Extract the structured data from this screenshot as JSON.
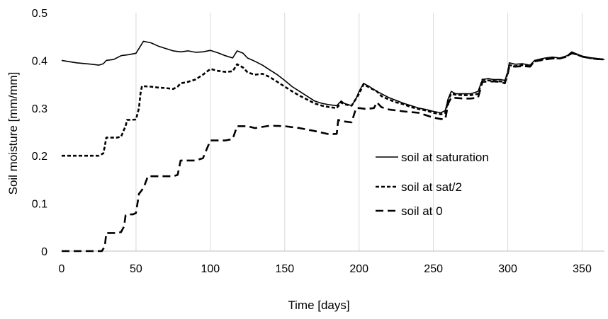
{
  "chart_data": {
    "type": "line",
    "title": "",
    "xlabel": "Time [days]",
    "ylabel": "Soil moisture [mm/mm]",
    "xlim": [
      0,
      365
    ],
    "ylim": [
      0,
      0.5
    ],
    "xticks": [
      0,
      50,
      100,
      150,
      200,
      250,
      300,
      350
    ],
    "yticks": [
      0,
      0.1,
      0.2,
      0.3,
      0.4,
      0.5
    ],
    "xtick_labels": [
      "0",
      "50",
      "100",
      "150",
      "200",
      "250",
      "300",
      "350"
    ],
    "ytick_labels": [
      "0",
      "0.1",
      "0.2",
      "0.3",
      "0.4",
      "0.5"
    ],
    "grid": "vertical",
    "legend_position": "right",
    "series": [
      {
        "name": "soil at saturation",
        "color": "#000000",
        "dash": "solid",
        "points": [
          [
            0,
            0.4
          ],
          [
            10,
            0.395
          ],
          [
            20,
            0.392
          ],
          [
            25,
            0.39
          ],
          [
            28,
            0.393
          ],
          [
            30,
            0.4
          ],
          [
            35,
            0.402
          ],
          [
            40,
            0.41
          ],
          [
            45,
            0.412
          ],
          [
            50,
            0.415
          ],
          [
            52,
            0.425
          ],
          [
            55,
            0.44
          ],
          [
            60,
            0.437
          ],
          [
            65,
            0.43
          ],
          [
            70,
            0.425
          ],
          [
            75,
            0.42
          ],
          [
            80,
            0.418
          ],
          [
            85,
            0.42
          ],
          [
            90,
            0.417
          ],
          [
            95,
            0.418
          ],
          [
            100,
            0.421
          ],
          [
            105,
            0.416
          ],
          [
            110,
            0.41
          ],
          [
            115,
            0.405
          ],
          [
            118,
            0.42
          ],
          [
            122,
            0.415
          ],
          [
            125,
            0.405
          ],
          [
            130,
            0.398
          ],
          [
            135,
            0.39
          ],
          [
            140,
            0.38
          ],
          [
            145,
            0.37
          ],
          [
            150,
            0.358
          ],
          [
            155,
            0.345
          ],
          [
            160,
            0.335
          ],
          [
            165,
            0.325
          ],
          [
            170,
            0.315
          ],
          [
            175,
            0.31
          ],
          [
            180,
            0.307
          ],
          [
            185,
            0.305
          ],
          [
            188,
            0.315
          ],
          [
            190,
            0.31
          ],
          [
            195,
            0.305
          ],
          [
            198,
            0.32
          ],
          [
            200,
            0.335
          ],
          [
            203,
            0.352
          ],
          [
            207,
            0.345
          ],
          [
            212,
            0.335
          ],
          [
            215,
            0.33
          ],
          [
            220,
            0.322
          ],
          [
            225,
            0.316
          ],
          [
            230,
            0.31
          ],
          [
            235,
            0.305
          ],
          [
            240,
            0.3
          ],
          [
            245,
            0.297
          ],
          [
            250,
            0.293
          ],
          [
            255,
            0.29
          ],
          [
            258,
            0.295
          ],
          [
            260,
            0.32
          ],
          [
            262,
            0.335
          ],
          [
            265,
            0.33
          ],
          [
            270,
            0.33
          ],
          [
            275,
            0.33
          ],
          [
            280,
            0.335
          ],
          [
            283,
            0.36
          ],
          [
            287,
            0.362
          ],
          [
            290,
            0.36
          ],
          [
            295,
            0.36
          ],
          [
            298,
            0.358
          ],
          [
            300,
            0.375
          ],
          [
            301,
            0.395
          ],
          [
            305,
            0.392
          ],
          [
            310,
            0.393
          ],
          [
            315,
            0.39
          ],
          [
            318,
            0.4
          ],
          [
            322,
            0.403
          ],
          [
            325,
            0.405
          ],
          [
            330,
            0.407
          ],
          [
            335,
            0.405
          ],
          [
            340,
            0.41
          ],
          [
            343,
            0.418
          ],
          [
            346,
            0.414
          ],
          [
            350,
            0.409
          ],
          [
            355,
            0.406
          ],
          [
            360,
            0.404
          ],
          [
            365,
            0.402
          ]
        ]
      },
      {
        "name": "soil at sat/2",
        "color": "#000000",
        "dash": "short",
        "points": [
          [
            0,
            0.2
          ],
          [
            25,
            0.2
          ],
          [
            28,
            0.205
          ],
          [
            29,
            0.22
          ],
          [
            30,
            0.238
          ],
          [
            37,
            0.238
          ],
          [
            40,
            0.24
          ],
          [
            42,
            0.255
          ],
          [
            43,
            0.262
          ],
          [
            44,
            0.275
          ],
          [
            50,
            0.276
          ],
          [
            52,
            0.3
          ],
          [
            53,
            0.33
          ],
          [
            54,
            0.346
          ],
          [
            60,
            0.345
          ],
          [
            65,
            0.343
          ],
          [
            70,
            0.342
          ],
          [
            75,
            0.34
          ],
          [
            78,
            0.345
          ],
          [
            80,
            0.352
          ],
          [
            85,
            0.355
          ],
          [
            90,
            0.36
          ],
          [
            95,
            0.37
          ],
          [
            97,
            0.375
          ],
          [
            100,
            0.382
          ],
          [
            105,
            0.378
          ],
          [
            110,
            0.376
          ],
          [
            115,
            0.377
          ],
          [
            118,
            0.392
          ],
          [
            122,
            0.385
          ],
          [
            125,
            0.375
          ],
          [
            130,
            0.37
          ],
          [
            135,
            0.372
          ],
          [
            140,
            0.365
          ],
          [
            145,
            0.355
          ],
          [
            150,
            0.345
          ],
          [
            155,
            0.335
          ],
          [
            160,
            0.326
          ],
          [
            165,
            0.318
          ],
          [
            170,
            0.31
          ],
          [
            175,
            0.305
          ],
          [
            180,
            0.302
          ],
          [
            185,
            0.3
          ],
          [
            188,
            0.312
          ],
          [
            190,
            0.308
          ],
          [
            195,
            0.305
          ],
          [
            198,
            0.32
          ],
          [
            200,
            0.33
          ],
          [
            203,
            0.35
          ],
          [
            207,
            0.343
          ],
          [
            212,
            0.335
          ],
          [
            215,
            0.325
          ],
          [
            220,
            0.318
          ],
          [
            225,
            0.312
          ],
          [
            230,
            0.308
          ],
          [
            235,
            0.302
          ],
          [
            240,
            0.298
          ],
          [
            245,
            0.295
          ],
          [
            250,
            0.29
          ],
          [
            255,
            0.287
          ],
          [
            258,
            0.29
          ],
          [
            260,
            0.318
          ],
          [
            262,
            0.33
          ],
          [
            265,
            0.328
          ],
          [
            270,
            0.327
          ],
          [
            275,
            0.327
          ],
          [
            280,
            0.33
          ],
          [
            283,
            0.36
          ],
          [
            287,
            0.358
          ],
          [
            290,
            0.357
          ],
          [
            295,
            0.356
          ],
          [
            298,
            0.355
          ],
          [
            300,
            0.375
          ],
          [
            301,
            0.39
          ],
          [
            305,
            0.388
          ],
          [
            310,
            0.39
          ],
          [
            315,
            0.388
          ],
          [
            318,
            0.398
          ],
          [
            322,
            0.402
          ],
          [
            325,
            0.402
          ],
          [
            330,
            0.405
          ],
          [
            335,
            0.404
          ],
          [
            340,
            0.409
          ],
          [
            343,
            0.416
          ],
          [
            346,
            0.413
          ],
          [
            350,
            0.408
          ],
          [
            355,
            0.405
          ],
          [
            360,
            0.403
          ],
          [
            365,
            0.402
          ]
        ]
      },
      {
        "name": "soil at 0",
        "color": "#000000",
        "dash": "long",
        "points": [
          [
            0,
            0.0
          ],
          [
            27,
            0.0
          ],
          [
            29,
            0.01
          ],
          [
            30,
            0.038
          ],
          [
            38,
            0.038
          ],
          [
            40,
            0.04
          ],
          [
            42,
            0.052
          ],
          [
            43,
            0.075
          ],
          [
            45,
            0.077
          ],
          [
            48,
            0.077
          ],
          [
            50,
            0.08
          ],
          [
            51,
            0.1
          ],
          [
            52,
            0.12
          ],
          [
            54,
            0.128
          ],
          [
            56,
            0.14
          ],
          [
            58,
            0.157
          ],
          [
            75,
            0.157
          ],
          [
            78,
            0.16
          ],
          [
            80,
            0.19
          ],
          [
            90,
            0.19
          ],
          [
            95,
            0.195
          ],
          [
            100,
            0.232
          ],
          [
            110,
            0.232
          ],
          [
            115,
            0.235
          ],
          [
            118,
            0.262
          ],
          [
            125,
            0.262
          ],
          [
            130,
            0.258
          ],
          [
            140,
            0.263
          ],
          [
            150,
            0.262
          ],
          [
            160,
            0.258
          ],
          [
            170,
            0.252
          ],
          [
            180,
            0.245
          ],
          [
            185,
            0.246
          ],
          [
            186,
            0.275
          ],
          [
            190,
            0.272
          ],
          [
            195,
            0.27
          ],
          [
            198,
            0.3
          ],
          [
            200,
            0.3
          ],
          [
            205,
            0.298
          ],
          [
            210,
            0.3
          ],
          [
            212,
            0.312
          ],
          [
            215,
            0.302
          ],
          [
            220,
            0.297
          ],
          [
            230,
            0.293
          ],
          [
            240,
            0.29
          ],
          [
            250,
            0.28
          ],
          [
            255,
            0.277
          ],
          [
            258,
            0.277
          ],
          [
            260,
            0.31
          ],
          [
            262,
            0.322
          ],
          [
            270,
            0.32
          ],
          [
            275,
            0.32
          ],
          [
            280,
            0.322
          ],
          [
            283,
            0.355
          ],
          [
            290,
            0.356
          ],
          [
            295,
            0.355
          ],
          [
            298,
            0.352
          ],
          [
            300,
            0.372
          ],
          [
            301,
            0.388
          ],
          [
            305,
            0.387
          ],
          [
            310,
            0.388
          ],
          [
            315,
            0.387
          ],
          [
            318,
            0.398
          ],
          [
            322,
            0.4
          ],
          [
            325,
            0.402
          ],
          [
            330,
            0.404
          ],
          [
            335,
            0.404
          ],
          [
            340,
            0.408
          ],
          [
            343,
            0.415
          ],
          [
            346,
            0.413
          ],
          [
            350,
            0.408
          ],
          [
            355,
            0.405
          ],
          [
            360,
            0.403
          ],
          [
            365,
            0.402
          ]
        ]
      }
    ]
  }
}
